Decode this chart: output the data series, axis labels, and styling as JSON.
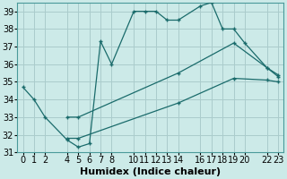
{
  "title": "",
  "xlabel": "Humidex (Indice chaleur)",
  "bg_color": "#cceae8",
  "grid_color": "#aacccc",
  "line_color": "#1a6b6b",
  "xlim": [
    -0.5,
    23.5
  ],
  "ylim": [
    31,
    39.5
  ],
  "xticks": [
    0,
    1,
    2,
    4,
    5,
    6,
    7,
    8,
    10,
    11,
    12,
    13,
    14,
    16,
    17,
    18,
    19,
    20,
    22,
    23
  ],
  "yticks": [
    31,
    32,
    33,
    34,
    35,
    36,
    37,
    38,
    39
  ],
  "series1_x": [
    0,
    1,
    2,
    4,
    5,
    6,
    7,
    8,
    10,
    11,
    12,
    13,
    14,
    16,
    17,
    18,
    19,
    20,
    22,
    23
  ],
  "series1_y": [
    34.7,
    34.0,
    33.0,
    31.7,
    31.3,
    31.5,
    37.3,
    36.0,
    39.0,
    39.0,
    39.0,
    38.5,
    38.5,
    39.3,
    39.5,
    38.0,
    38.0,
    37.2,
    35.8,
    35.4
  ],
  "series2_x": [
    4,
    5,
    14,
    19,
    22,
    23
  ],
  "series2_y": [
    33.0,
    33.0,
    35.5,
    37.2,
    35.8,
    35.3
  ],
  "series3_x": [
    4,
    5,
    14,
    19,
    22,
    23
  ],
  "series3_y": [
    31.8,
    31.8,
    33.8,
    35.2,
    35.1,
    35.0
  ],
  "xlabel_fontsize": 8,
  "tick_fontsize": 7
}
